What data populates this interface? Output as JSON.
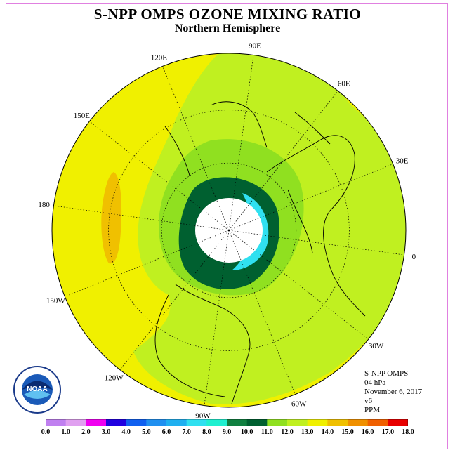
{
  "title": "S-NPP OMPS OZONE MIXING RATIO",
  "subtitle": "Northern Hemisphere",
  "info": {
    "instrument": "S-NPP OMPS",
    "level": "04 hPa",
    "date": "November 6, 2017",
    "version": "v6",
    "units": "PPM"
  },
  "longitude_labels": [
    "90E",
    "60E",
    "30E",
    "0",
    "30W",
    "60W",
    "90W",
    "120W",
    "150W",
    "180",
    "150E",
    "120E"
  ],
  "logo_text": "NOAA",
  "colorbar": {
    "labels": [
      "0.0",
      "1.0",
      "2.0",
      "3.0",
      "4.0",
      "5.0",
      "6.0",
      "7.0",
      "8.0",
      "9.0",
      "10.0",
      "11.0",
      "12.0",
      "13.0",
      "14.0",
      "15.0",
      "16.0",
      "17.0",
      "18.0"
    ],
    "colors": [
      "#c080f0",
      "#e0a0f0",
      "#f000f0",
      "#2000e0",
      "#1060f0",
      "#2090f0",
      "#20b0f0",
      "#30e0f0",
      "#20f0d0",
      "#108040",
      "#006030",
      "#90e020",
      "#c0f020",
      "#f0f000",
      "#f0c000",
      "#f09000",
      "#f06000",
      "#e80000",
      "#906040"
    ]
  },
  "colors": {
    "ocean_fill": "#f0f000",
    "ozone_low": "#c0f020",
    "ozone_mid": "#90e020",
    "ozone_high": "#006030",
    "polar_night": "#ffffff"
  }
}
